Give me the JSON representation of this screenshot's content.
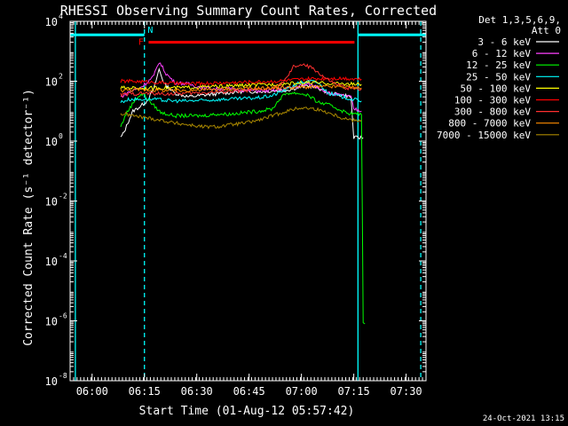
{
  "chart_data": {
    "type": "line",
    "title": "RHESSI Observing Summary Count Rates, Corrected",
    "xlabel": "Start Time (01-Aug-12 05:57:42)",
    "ylabel": "Corrected Count Rate (s⁻¹ detector⁻¹)",
    "yscale": "log",
    "xlim_minutes": [
      -4,
      98
    ],
    "ylim": [
      1e-08,
      10000.0
    ],
    "xticks": [
      {
        "m": 2.3,
        "label": "06:00"
      },
      {
        "m": 17.3,
        "label": "06:15"
      },
      {
        "m": 32.3,
        "label": "06:30"
      },
      {
        "m": 47.3,
        "label": "06:45"
      },
      {
        "m": 62.3,
        "label": "07:00"
      },
      {
        "m": 77.3,
        "label": "07:15"
      },
      {
        "m": 92.3,
        "label": "07:30"
      }
    ],
    "yticks": [
      {
        "exp": 4,
        "label": "10",
        "sup": "4"
      },
      {
        "exp": 2,
        "label": "10",
        "sup": "2"
      },
      {
        "exp": 0,
        "label": "10",
        "sup": "0"
      },
      {
        "exp": -2,
        "label": "10",
        "sup": "-2"
      },
      {
        "exp": -4,
        "label": "10",
        "sup": "-4"
      },
      {
        "exp": -6,
        "label": "10",
        "sup": "-6"
      },
      {
        "exp": -8,
        "label": "10",
        "sup": "-8"
      }
    ],
    "legend_header": [
      "Det 1,3,5,6,9,",
      "Att 0"
    ],
    "series": [
      {
        "name": "3 - 6 keV",
        "color": "#ffffff",
        "pts": [
          [
            10.5,
            1.3
          ],
          [
            11.5,
            2
          ],
          [
            12.5,
            4
          ],
          [
            14,
            10
          ],
          [
            16,
            14
          ],
          [
            18,
            22
          ],
          [
            20,
            55
          ],
          [
            21.5,
            250
          ],
          [
            23,
            80
          ],
          [
            26,
            40
          ],
          [
            30,
            30
          ],
          [
            35,
            35
          ],
          [
            40,
            40
          ],
          [
            45,
            45
          ],
          [
            50,
            45
          ],
          [
            55,
            48
          ],
          [
            58,
            50
          ],
          [
            61,
            60
          ],
          [
            64,
            70
          ],
          [
            67,
            60
          ],
          [
            70,
            40
          ],
          [
            75,
            33
          ],
          [
            76.5,
            30
          ],
          [
            77.3,
            1.3
          ],
          [
            80,
            1.3
          ]
        ]
      },
      {
        "name": "6 - 12 keV",
        "color": "#ff40ff",
        "pts": [
          [
            10.5,
            30
          ],
          [
            13,
            45
          ],
          [
            16,
            60
          ],
          [
            18,
            90
          ],
          [
            20,
            150
          ],
          [
            21.5,
            450
          ],
          [
            23.5,
            180
          ],
          [
            26,
            90
          ],
          [
            30,
            80
          ],
          [
            34,
            60
          ],
          [
            38,
            55
          ],
          [
            42,
            55
          ],
          [
            46,
            50
          ],
          [
            50,
            48
          ],
          [
            54,
            48
          ],
          [
            58,
            58
          ],
          [
            62,
            70
          ],
          [
            64,
            80
          ],
          [
            67,
            65
          ],
          [
            70,
            40
          ],
          [
            74,
            33
          ],
          [
            76.5,
            30
          ],
          [
            77.3,
            12
          ],
          [
            79.5,
            10
          ]
        ]
      },
      {
        "name": "12 - 25 keV",
        "color": "#00ff00",
        "pts": [
          [
            10.5,
            3
          ],
          [
            12,
            8
          ],
          [
            13.5,
            15
          ],
          [
            15,
            28
          ],
          [
            17,
            38
          ],
          [
            19,
            20
          ],
          [
            22,
            9
          ],
          [
            26,
            7
          ],
          [
            30,
            7
          ],
          [
            34,
            7
          ],
          [
            38,
            8
          ],
          [
            42,
            8
          ],
          [
            46,
            9
          ],
          [
            50,
            10
          ],
          [
            54,
            12
          ],
          [
            56,
            25
          ],
          [
            58,
            40
          ],
          [
            61,
            40
          ],
          [
            64,
            35
          ],
          [
            67,
            20
          ],
          [
            71,
            15
          ],
          [
            75,
            9
          ],
          [
            77.5,
            8
          ],
          [
            79.5,
            8
          ],
          [
            80,
            1e-06
          ],
          [
            80.5,
            8e-07
          ]
        ]
      },
      {
        "name": "25 - 50 keV",
        "color": "#00ffff",
        "pts": [
          [
            10.5,
            20
          ],
          [
            13,
            25
          ],
          [
            16,
            25
          ],
          [
            20,
            25
          ],
          [
            25,
            22
          ],
          [
            30,
            22
          ],
          [
            35,
            23
          ],
          [
            40,
            25
          ],
          [
            45,
            26
          ],
          [
            50,
            28
          ],
          [
            54,
            33
          ],
          [
            58,
            55
          ],
          [
            62,
            90
          ],
          [
            65,
            100
          ],
          [
            67,
            90
          ],
          [
            70,
            40
          ],
          [
            74,
            30
          ],
          [
            77,
            25
          ],
          [
            79.5,
            22
          ]
        ]
      },
      {
        "name": "50 - 100 keV",
        "color": "#ffff00",
        "pts": [
          [
            10.5,
            60
          ],
          [
            14,
            60
          ],
          [
            18,
            58
          ],
          [
            22,
            60
          ],
          [
            26,
            60
          ],
          [
            30,
            62
          ],
          [
            35,
            65
          ],
          [
            40,
            68
          ],
          [
            45,
            72
          ],
          [
            50,
            75
          ],
          [
            55,
            80
          ],
          [
            60,
            85
          ],
          [
            65,
            90
          ],
          [
            70,
            85
          ],
          [
            75,
            82
          ],
          [
            79.5,
            78
          ]
        ]
      },
      {
        "name": "100 - 300 keV",
        "color": "#ff0000",
        "pts": [
          [
            10.5,
            100
          ],
          [
            14,
            100
          ],
          [
            18,
            95
          ],
          [
            22,
            90
          ],
          [
            26,
            85
          ],
          [
            30,
            82
          ],
          [
            35,
            85
          ],
          [
            40,
            88
          ],
          [
            45,
            92
          ],
          [
            50,
            95
          ],
          [
            55,
            100
          ],
          [
            60,
            110
          ],
          [
            65,
            120
          ],
          [
            70,
            125
          ],
          [
            75,
            125
          ],
          [
            79.5,
            118
          ]
        ]
      },
      {
        "name": "300 - 800 keV",
        "color": "#ff3030",
        "pts": [
          [
            10.5,
            35
          ],
          [
            14,
            38
          ],
          [
            18,
            40
          ],
          [
            22,
            38
          ],
          [
            26,
            38
          ],
          [
            30,
            40
          ],
          [
            35,
            42
          ],
          [
            40,
            45
          ],
          [
            45,
            48
          ],
          [
            50,
            52
          ],
          [
            55,
            60
          ],
          [
            58,
            120
          ],
          [
            60,
            300
          ],
          [
            62,
            350
          ],
          [
            64,
            320
          ],
          [
            66,
            250
          ],
          [
            69,
            130
          ],
          [
            72,
            80
          ],
          [
            75,
            60
          ],
          [
            79.5,
            55
          ]
        ]
      },
      {
        "name": "800 - 7000 keV",
        "color": "#ff8c00",
        "pts": [
          [
            10.5,
            50
          ],
          [
            14,
            52
          ],
          [
            18,
            52
          ],
          [
            22,
            50
          ],
          [
            26,
            48
          ],
          [
            30,
            50
          ],
          [
            35,
            52
          ],
          [
            40,
            55
          ],
          [
            45,
            57
          ],
          [
            50,
            58
          ],
          [
            55,
            60
          ],
          [
            60,
            62
          ],
          [
            65,
            64
          ],
          [
            70,
            66
          ],
          [
            75,
            65
          ],
          [
            79.5,
            60
          ]
        ]
      },
      {
        "name": "7000 - 15000 keV",
        "color": "#aa8800",
        "pts": [
          [
            10.5,
            8
          ],
          [
            12,
            8
          ],
          [
            14,
            7
          ],
          [
            18,
            6
          ],
          [
            22,
            5
          ],
          [
            26,
            4
          ],
          [
            30,
            3.5
          ],
          [
            34,
            3
          ],
          [
            38,
            3
          ],
          [
            42,
            3.5
          ],
          [
            46,
            4
          ],
          [
            50,
            5
          ],
          [
            54,
            7
          ],
          [
            58,
            10
          ],
          [
            62,
            13
          ],
          [
            66,
            12
          ],
          [
            70,
            9
          ],
          [
            74,
            6
          ],
          [
            77,
            5
          ],
          [
            79.5,
            5
          ]
        ]
      }
    ],
    "markers": [
      {
        "type": "saa_bar",
        "color": "#00ffff",
        "label": "N",
        "ranges": [
          [
            -4,
            17.3
          ],
          [
            78.5,
            98
          ]
        ],
        "level_exp": 3.55,
        "label_m": 19
      },
      {
        "type": "flare_bar",
        "color": "#ff0000",
        "label": "F",
        "ranges": [
          [
            18.5,
            77.5
          ]
        ],
        "level_exp": 3.3,
        "label_m": 16.3
      }
    ],
    "vlines": [
      {
        "m": -2.5,
        "style": "solid",
        "color": "#00ffff"
      },
      {
        "m": 17.3,
        "style": "dash",
        "color": "#00ffff"
      },
      {
        "m": 78.5,
        "style": "solid",
        "color": "#00ffff"
      },
      {
        "m": 96.5,
        "style": "dash",
        "color": "#00ffff"
      }
    ],
    "footer_date": "24-Oct-2021 13:15"
  }
}
